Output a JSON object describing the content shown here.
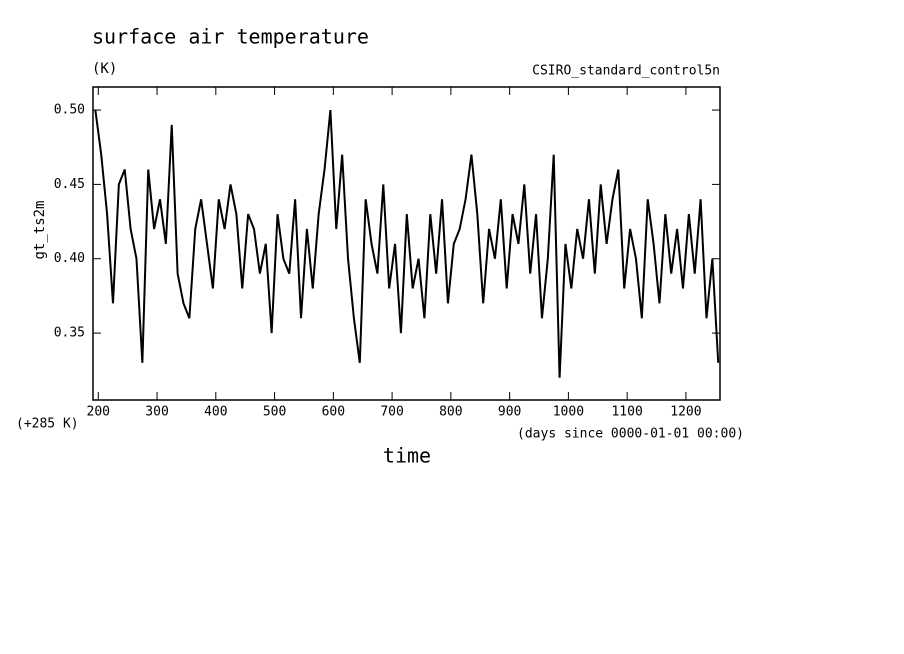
{
  "chart_data": {
    "type": "line",
    "title": "surface air temperature",
    "subtitle": "(K)",
    "annotation": "CSIRO_standard_control5n",
    "y_label": "gt_ts2m",
    "y_offset_label": "(+285 K)",
    "x_units_label": "(days since 0000-01-01 00:00)",
    "x_label": "time",
    "xlim": [
      191,
      1258
    ],
    "ylim": [
      0.305,
      0.5155
    ],
    "xticks": [
      200,
      300,
      400,
      500,
      600,
      700,
      800,
      900,
      1000,
      1100,
      1200
    ],
    "yticks": [
      {
        "value": 0.35,
        "label": "0.35"
      },
      {
        "value": 0.4,
        "label": "0.40"
      },
      {
        "value": 0.45,
        "label": "0.45"
      },
      {
        "value": 0.5,
        "label": "0.50"
      }
    ],
    "x": [
      195,
      205,
      215,
      225,
      235,
      245,
      255,
      265,
      275,
      285,
      295,
      305,
      315,
      325,
      335,
      345,
      355,
      365,
      375,
      385,
      395,
      405,
      415,
      425,
      435,
      445,
      455,
      465,
      475,
      485,
      495,
      505,
      515,
      525,
      535,
      545,
      555,
      565,
      575,
      585,
      595,
      605,
      615,
      625,
      635,
      645,
      655,
      665,
      675,
      685,
      695,
      705,
      715,
      725,
      735,
      745,
      755,
      765,
      775,
      785,
      795,
      805,
      815,
      825,
      835,
      845,
      855,
      865,
      875,
      885,
      895,
      905,
      915,
      925,
      935,
      945,
      955,
      965,
      975,
      985,
      995,
      1005,
      1015,
      1025,
      1035,
      1045,
      1055,
      1065,
      1075,
      1085,
      1095,
      1105,
      1115,
      1125,
      1135,
      1145,
      1155,
      1165,
      1175,
      1185,
      1195,
      1205,
      1215,
      1225,
      1235,
      1245,
      1255
    ],
    "series": [
      {
        "color": "#000000",
        "values": [
          0.5,
          0.47,
          0.43,
          0.37,
          0.45,
          0.46,
          0.42,
          0.4,
          0.33,
          0.46,
          0.42,
          0.44,
          0.41,
          0.49,
          0.39,
          0.37,
          0.36,
          0.42,
          0.44,
          0.41,
          0.38,
          0.44,
          0.42,
          0.45,
          0.43,
          0.38,
          0.43,
          0.42,
          0.39,
          0.41,
          0.35,
          0.43,
          0.4,
          0.39,
          0.44,
          0.36,
          0.42,
          0.38,
          0.43,
          0.46,
          0.5,
          0.42,
          0.47,
          0.4,
          0.36,
          0.33,
          0.44,
          0.41,
          0.39,
          0.45,
          0.38,
          0.41,
          0.35,
          0.43,
          0.38,
          0.4,
          0.36,
          0.43,
          0.39,
          0.44,
          0.37,
          0.41,
          0.42,
          0.44,
          0.47,
          0.43,
          0.37,
          0.42,
          0.4,
          0.44,
          0.38,
          0.43,
          0.41,
          0.45,
          0.39,
          0.43,
          0.36,
          0.4,
          0.47,
          0.32,
          0.41,
          0.38,
          0.42,
          0.4,
          0.44,
          0.39,
          0.45,
          0.41,
          0.44,
          0.46,
          0.38,
          0.42,
          0.4,
          0.36,
          0.44,
          0.41,
          0.37,
          0.43,
          0.39,
          0.42,
          0.38,
          0.43,
          0.39,
          0.44,
          0.36,
          0.4,
          0.33
        ]
      }
    ]
  }
}
